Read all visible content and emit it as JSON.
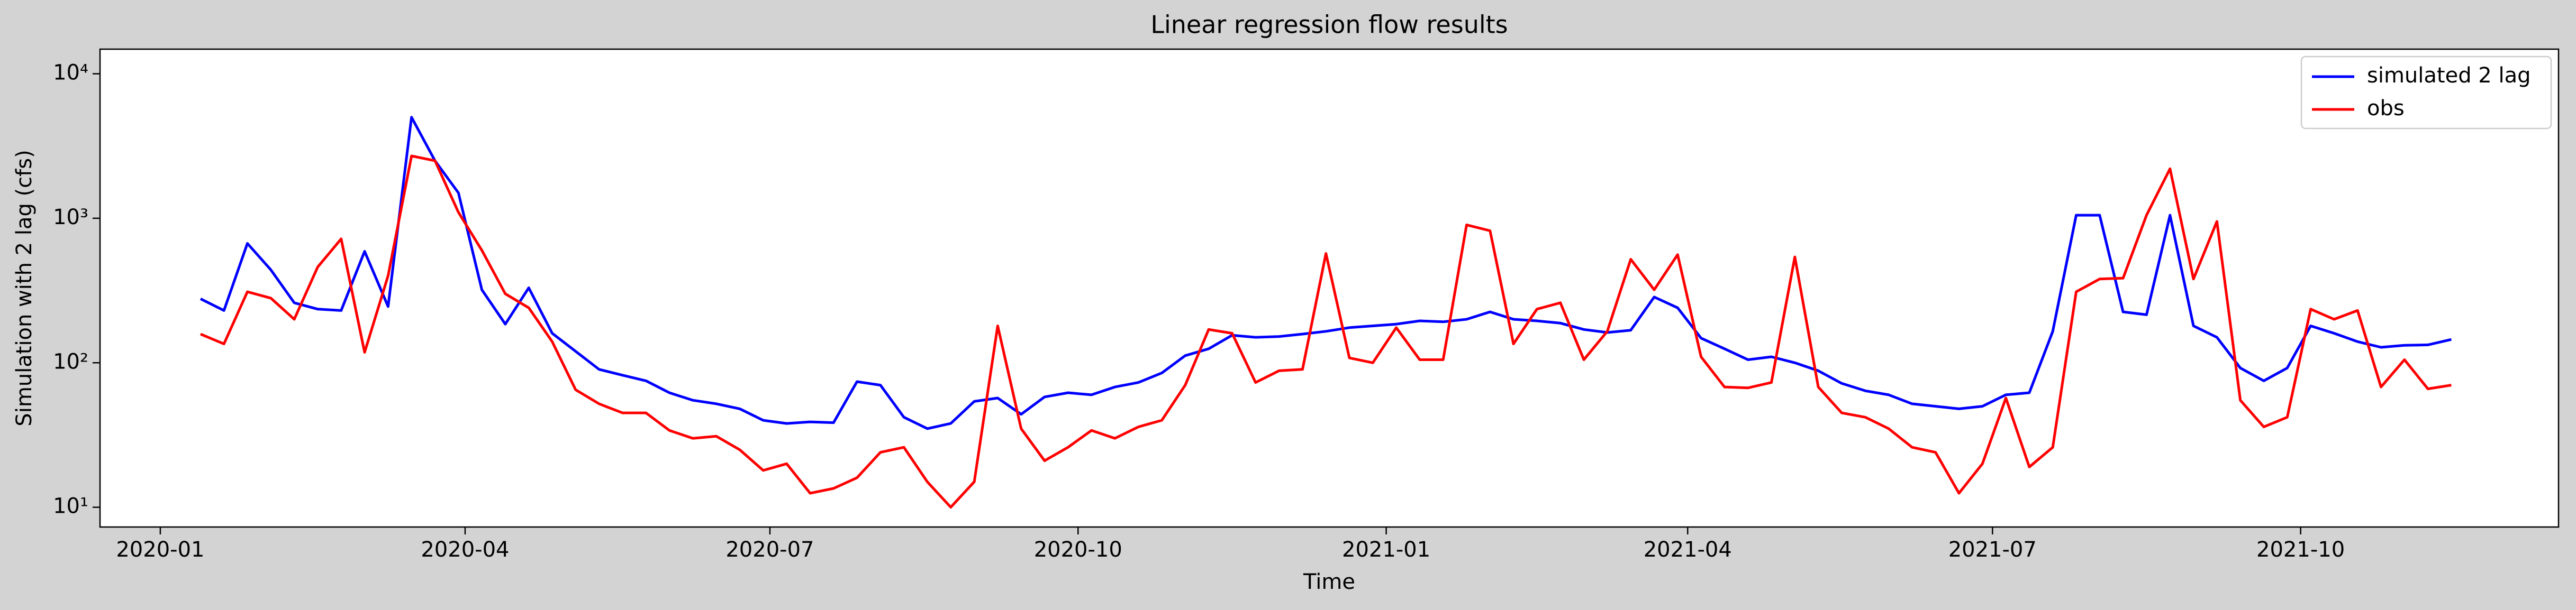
{
  "chart_data": {
    "type": "line",
    "title": "Linear regression flow results",
    "x_label": "Time",
    "y_label": "Simulation with 2 lag (cfs)",
    "x": [
      "2020-01-13",
      "2020-01-20",
      "2020-01-27",
      "2020-02-03",
      "2020-02-10",
      "2020-02-17",
      "2020-02-24",
      "2020-03-02",
      "2020-03-09",
      "2020-03-16",
      "2020-03-23",
      "2020-03-30",
      "2020-04-06",
      "2020-04-13",
      "2020-04-20",
      "2020-04-27",
      "2020-05-04",
      "2020-05-11",
      "2020-05-18",
      "2020-05-25",
      "2020-06-01",
      "2020-06-08",
      "2020-06-15",
      "2020-06-22",
      "2020-06-29",
      "2020-07-06",
      "2020-07-13",
      "2020-07-20",
      "2020-07-27",
      "2020-08-03",
      "2020-08-10",
      "2020-08-17",
      "2020-08-24",
      "2020-08-31",
      "2020-09-07",
      "2020-09-14",
      "2020-09-21",
      "2020-09-28",
      "2020-10-05",
      "2020-10-12",
      "2020-10-19",
      "2020-10-26",
      "2020-11-02",
      "2020-11-09",
      "2020-11-16",
      "2020-11-23",
      "2020-11-30",
      "2020-12-07",
      "2020-12-14",
      "2020-12-21",
      "2020-12-28",
      "2021-01-04",
      "2021-01-11",
      "2021-01-18",
      "2021-01-25",
      "2021-02-01",
      "2021-02-08",
      "2021-02-15",
      "2021-02-22",
      "2021-03-01",
      "2021-03-08",
      "2021-03-15",
      "2021-03-22",
      "2021-03-29",
      "2021-04-05",
      "2021-04-12",
      "2021-04-19",
      "2021-04-26",
      "2021-05-03",
      "2021-05-10",
      "2021-05-17",
      "2021-05-24",
      "2021-05-31",
      "2021-06-07",
      "2021-06-14",
      "2021-06-21",
      "2021-06-28",
      "2021-07-05",
      "2021-07-12",
      "2021-07-19",
      "2021-07-26",
      "2021-08-02",
      "2021-08-09",
      "2021-08-16",
      "2021-08-23",
      "2021-08-30",
      "2021-09-06",
      "2021-09-13",
      "2021-09-20",
      "2021-09-27",
      "2021-10-04",
      "2021-10-11",
      "2021-10-18",
      "2021-10-25",
      "2021-11-01",
      "2021-11-08",
      "2021-11-15"
    ],
    "series": [
      {
        "name": "simulated 2 lag",
        "color": "#0000ff",
        "values": [
          277,
          230,
          670,
          440,
          260,
          235,
          230,
          590,
          245,
          5000,
          2500,
          1500,
          320,
          185,
          330,
          160,
          120,
          90,
          82,
          75,
          62,
          55,
          52,
          48,
          40,
          38,
          39,
          38.5,
          74,
          70,
          42,
          35,
          38,
          54,
          57,
          44,
          58,
          62,
          60,
          68,
          73,
          85,
          112,
          125,
          155,
          150,
          152,
          158,
          165,
          175,
          180,
          185,
          195,
          192,
          200,
          225,
          200,
          195,
          188,
          170,
          162,
          168,
          285,
          240,
          148,
          125,
          105,
          110,
          100,
          88,
          72,
          64,
          60,
          52,
          50,
          48,
          50,
          60,
          62,
          165,
          1050,
          1050,
          225,
          215,
          1050,
          180,
          150,
          92,
          75,
          92,
          180,
          160,
          140,
          128,
          132,
          133,
          145
        ]
      },
      {
        "name": "obs",
        "color": "#ff0000",
        "values": [
          158,
          135,
          310,
          280,
          200,
          460,
          720,
          118,
          400,
          2700,
          2500,
          1100,
          600,
          300,
          240,
          140,
          65,
          52,
          45,
          45,
          34,
          30,
          31,
          25,
          18,
          20,
          12.5,
          13.5,
          16,
          24,
          26,
          15,
          10,
          15,
          180,
          35,
          21,
          26,
          34,
          30,
          36,
          40,
          70,
          170,
          160,
          73,
          88,
          90,
          570,
          108,
          100,
          175,
          105,
          105,
          900,
          820,
          135,
          235,
          260,
          105,
          165,
          520,
          320,
          560,
          110,
          68,
          67,
          73,
          540,
          68,
          45,
          42,
          35,
          26,
          24,
          12.5,
          20,
          57,
          19,
          26,
          310,
          380,
          385,
          1050,
          2200,
          380,
          950,
          55,
          36,
          42,
          235,
          200,
          230,
          68,
          105,
          66,
          70
        ]
      }
    ],
    "xlim": [
      "2019-12-14",
      "2021-12-17"
    ],
    "xticks": [
      "2020-01",
      "2020-04",
      "2020-07",
      "2020-10",
      "2021-01",
      "2021-04",
      "2021-07",
      "2021-10"
    ],
    "ylim": [
      7.3,
      14800
    ],
    "yticks": [
      {
        "value": 10,
        "label": "10¹"
      },
      {
        "value": 100,
        "label": "10²"
      },
      {
        "value": 1000,
        "label": "10³"
      },
      {
        "value": 10000,
        "label": "10⁴"
      }
    ],
    "y_scale": "log",
    "legend": "upper right"
  }
}
